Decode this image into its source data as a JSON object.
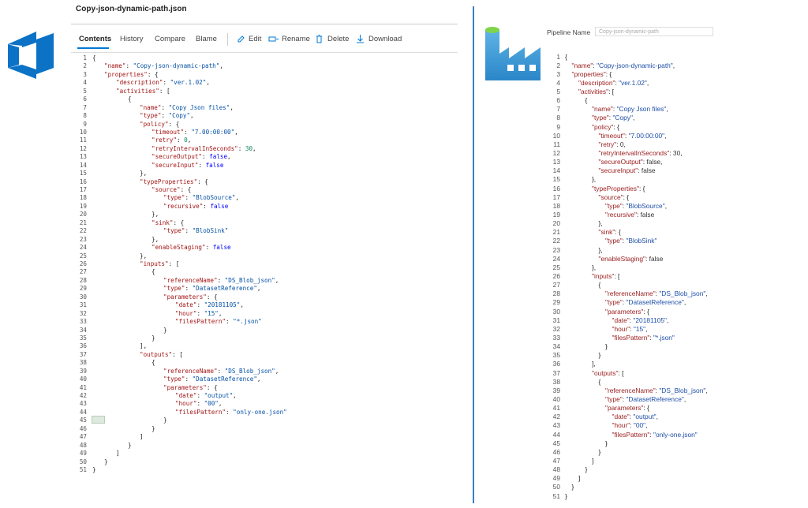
{
  "left_pane": {
    "file_title": "Copy-json-dynamic-path.json",
    "tabs": [
      "Contents",
      "History",
      "Compare",
      "Blame"
    ],
    "actions": [
      "Edit",
      "Rename",
      "Delete",
      "Download"
    ]
  },
  "right_pane": {
    "pipeline_name_label": "Pipeline Name",
    "pipeline_name_placeholder": "Copy-json-dynamic-path"
  },
  "code": {
    "line_numbers": [
      1,
      2,
      3,
      4,
      5,
      6,
      7,
      8,
      9,
      10,
      11,
      12,
      13,
      14,
      15,
      16,
      17,
      18,
      19,
      20,
      21,
      22,
      23,
      24,
      25,
      26,
      27,
      28,
      29,
      30,
      31,
      32,
      33,
      34,
      35,
      36,
      37,
      38,
      39,
      40,
      41,
      42,
      43,
      44,
      45,
      46,
      47,
      48,
      49,
      50,
      51
    ],
    "lines": [
      "{",
      "\t\"name\": \"Copy-json-dynamic-path\",",
      "\t\"properties\": {",
      "\t\t\"description\": \"ver.1.02\",",
      "\t\t\"activities\": [",
      "\t\t\t{",
      "\t\t\t\t\"name\": \"Copy Json files\",",
      "\t\t\t\t\"type\": \"Copy\",",
      "\t\t\t\t\"policy\": {",
      "\t\t\t\t\t\"timeout\": \"7.00:00:00\",",
      "\t\t\t\t\t\"retry\": 0,",
      "\t\t\t\t\t\"retryIntervalInSeconds\": 30,",
      "\t\t\t\t\t\"secureOutput\": false,",
      "\t\t\t\t\t\"secureInput\": false",
      "\t\t\t\t},",
      "\t\t\t\t\"typeProperties\": {",
      "\t\t\t\t\t\"source\": {",
      "\t\t\t\t\t\t\"type\": \"BlobSource\",",
      "\t\t\t\t\t\t\"recursive\": false",
      "\t\t\t\t\t},",
      "\t\t\t\t\t\"sink\": {",
      "\t\t\t\t\t\t\"type\": \"BlobSink\"",
      "\t\t\t\t\t},",
      "\t\t\t\t\t\"enableStaging\": false",
      "\t\t\t\t},",
      "\t\t\t\t\"inputs\": [",
      "\t\t\t\t\t{",
      "\t\t\t\t\t\t\"referenceName\": \"DS_Blob_json\",",
      "\t\t\t\t\t\t\"type\": \"DatasetReference\",",
      "\t\t\t\t\t\t\"parameters\": {",
      "\t\t\t\t\t\t\t\"date\": \"20181105\",",
      "\t\t\t\t\t\t\t\"hour\": \"15\",",
      "\t\t\t\t\t\t\t\"filesPattern\": \"*.json\"",
      "\t\t\t\t\t\t}",
      "\t\t\t\t\t}",
      "\t\t\t\t],",
      "\t\t\t\t\"outputs\": [",
      "\t\t\t\t\t{",
      "\t\t\t\t\t\t\"referenceName\": \"DS_Blob_json\",",
      "\t\t\t\t\t\t\"type\": \"DatasetReference\",",
      "\t\t\t\t\t\t\"parameters\": {",
      "\t\t\t\t\t\t\t\"date\": \"output\",",
      "\t\t\t\t\t\t\t\"hour\": \"00\",",
      "\t\t\t\t\t\t\t\"filesPattern\": \"only-one.json\"",
      "\t\t\t\t\t\t}",
      "\t\t\t\t\t}",
      "\t\t\t\t]",
      "\t\t\t}",
      "\t\t]",
      "\t}",
      "}"
    ]
  }
}
